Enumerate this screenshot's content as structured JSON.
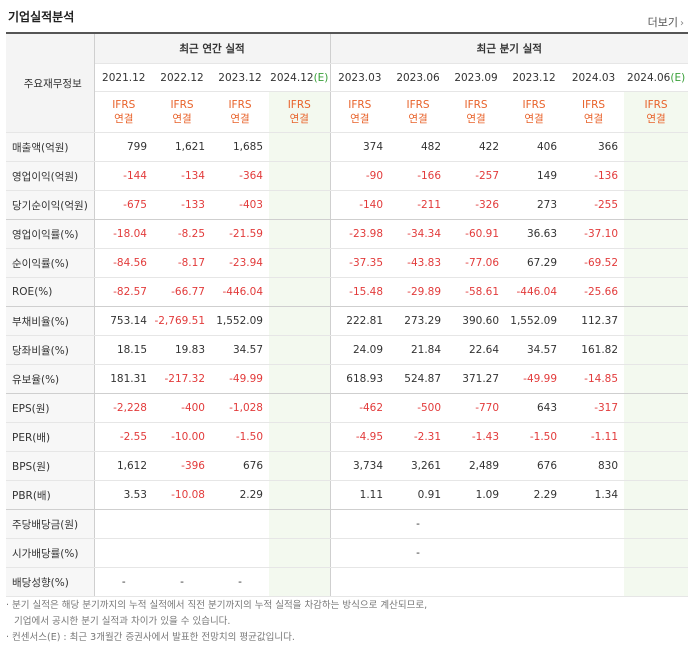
{
  "section_title": "기업실적분석",
  "more_label": "더보기",
  "header": {
    "row_label": "주요재무정보",
    "annual_group": "최근 연간 실적",
    "quarter_group": "최근 분기 실적",
    "annual_periods": [
      "2021.12",
      "2022.12",
      "2023.12",
      "2024.12"
    ],
    "annual_estimate_mark": "(E)",
    "quarter_periods": [
      "2023.03",
      "2023.06",
      "2023.09",
      "2023.12",
      "2024.03",
      "2024.06"
    ],
    "quarter_estimate_mark": "(E)",
    "ifrs_label": "IFRS",
    "basis_label": "연결"
  },
  "rows": [
    {
      "label": "매출액(억원)",
      "annual": [
        "799",
        "1,621",
        "1,685",
        ""
      ],
      "quarter": [
        "374",
        "482",
        "422",
        "406",
        "366",
        ""
      ]
    },
    {
      "label": "영업이익(억원)",
      "annual": [
        "-144",
        "-134",
        "-364",
        ""
      ],
      "quarter": [
        "-90",
        "-166",
        "-257",
        "149",
        "-136",
        ""
      ]
    },
    {
      "label": "당기순이익(억원)",
      "annual": [
        "-675",
        "-133",
        "-403",
        ""
      ],
      "quarter": [
        "-140",
        "-211",
        "-326",
        "273",
        "-255",
        ""
      ]
    },
    {
      "label": "영업이익률(%)",
      "annual": [
        "-18.04",
        "-8.25",
        "-21.59",
        ""
      ],
      "quarter": [
        "-23.98",
        "-34.34",
        "-60.91",
        "36.63",
        "-37.10",
        ""
      ]
    },
    {
      "label": "순이익률(%)",
      "annual": [
        "-84.56",
        "-8.17",
        "-23.94",
        ""
      ],
      "quarter": [
        "-37.35",
        "-43.83",
        "-77.06",
        "67.29",
        "-69.52",
        ""
      ]
    },
    {
      "label": "ROE(%)",
      "annual": [
        "-82.57",
        "-66.77",
        "-446.04",
        ""
      ],
      "quarter": [
        "-15.48",
        "-29.89",
        "-58.61",
        "-446.04",
        "-25.66",
        ""
      ]
    },
    {
      "label": "부채비율(%)",
      "annual": [
        "753.14",
        "-2,769.51",
        "1,552.09",
        ""
      ],
      "quarter": [
        "222.81",
        "273.29",
        "390.60",
        "1,552.09",
        "112.37",
        ""
      ]
    },
    {
      "label": "당좌비율(%)",
      "annual": [
        "18.15",
        "19.83",
        "34.57",
        ""
      ],
      "quarter": [
        "24.09",
        "21.84",
        "22.64",
        "34.57",
        "161.82",
        ""
      ]
    },
    {
      "label": "유보율(%)",
      "annual": [
        "181.31",
        "-217.32",
        "-49.99",
        ""
      ],
      "quarter": [
        "618.93",
        "524.87",
        "371.27",
        "-49.99",
        "-14.85",
        ""
      ]
    },
    {
      "label": "EPS(원)",
      "annual": [
        "-2,228",
        "-400",
        "-1,028",
        ""
      ],
      "quarter": [
        "-462",
        "-500",
        "-770",
        "643",
        "-317",
        ""
      ]
    },
    {
      "label": "PER(배)",
      "annual": [
        "-2.55",
        "-10.00",
        "-1.50",
        ""
      ],
      "quarter": [
        "-4.95",
        "-2.31",
        "-1.43",
        "-1.50",
        "-1.11",
        ""
      ]
    },
    {
      "label": "BPS(원)",
      "annual": [
        "1,612",
        "-396",
        "676",
        ""
      ],
      "quarter": [
        "3,734",
        "3,261",
        "2,489",
        "676",
        "830",
        ""
      ]
    },
    {
      "label": "PBR(배)",
      "annual": [
        "3.53",
        "-10.08",
        "2.29",
        ""
      ],
      "quarter": [
        "1.11",
        "0.91",
        "1.09",
        "2.29",
        "1.34",
        ""
      ]
    },
    {
      "label": "주당배당금(원)",
      "annual": [
        "",
        "",
        "",
        ""
      ],
      "quarter": [
        "",
        "-",
        "",
        "",
        "",
        ""
      ]
    },
    {
      "label": "시가배당률(%)",
      "annual": [
        "",
        "",
        "",
        ""
      ],
      "quarter": [
        "",
        "-",
        "",
        "",
        "",
        ""
      ]
    },
    {
      "label": "배당성향(%)",
      "annual": [
        "-",
        "-",
        "-",
        ""
      ],
      "quarter": [
        "",
        "",
        "",
        "",
        "",
        ""
      ]
    }
  ],
  "footnotes": [
    "· 분기 실적은 해당 분기까지의 누적 실적에서 직전 분기까지의 누적 실적을 차감하는 방식으로 계산되므로,",
    "기업에서 공시한 분기 실적과 차이가 있을 수 있습니다.",
    "· 컨센서스(E) : 최근 3개월간 증권사에서 발표한 전망치의 평균값입니다."
  ],
  "colors": {
    "negative": "#e23b3b",
    "ifrs": "#e8622a",
    "estimate_bg": "#f3f9ef",
    "estimate_mark": "#39a039"
  }
}
